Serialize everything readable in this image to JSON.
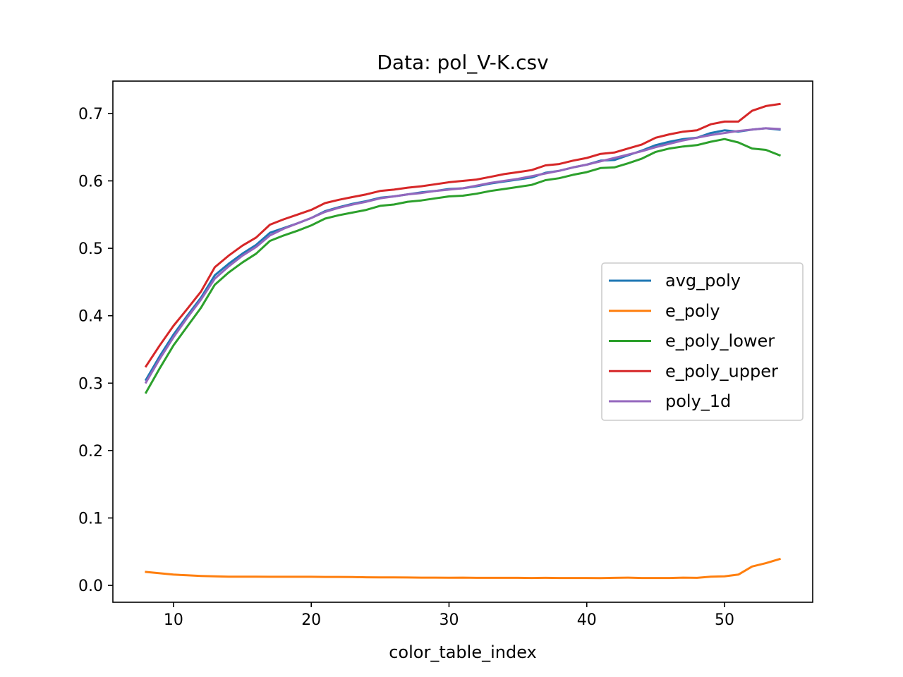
{
  "chart_data": {
    "type": "line",
    "title": "Data: pol_V-K.csv",
    "xlabel": "color_table_index",
    "ylabel": "",
    "xlim": [
      5.6,
      56.4
    ],
    "ylim": [
      -0.025,
      0.748
    ],
    "xticks": [
      10,
      20,
      30,
      40,
      50
    ],
    "xtick_labels": [
      "10",
      "20",
      "30",
      "40",
      "50"
    ],
    "yticks": [
      0.0,
      0.1,
      0.2,
      0.3,
      0.4,
      0.5,
      0.6,
      0.7
    ],
    "ytick_labels": [
      "0.0",
      "0.1",
      "0.2",
      "0.3",
      "0.4",
      "0.5",
      "0.6",
      "0.7"
    ],
    "grid": false,
    "legend_position": "center-right",
    "x": [
      8,
      9,
      10,
      11,
      12,
      13,
      14,
      15,
      16,
      17,
      18,
      19,
      20,
      21,
      22,
      23,
      24,
      25,
      26,
      27,
      28,
      29,
      30,
      31,
      32,
      33,
      34,
      35,
      36,
      37,
      38,
      39,
      40,
      41,
      42,
      43,
      44,
      45,
      46,
      47,
      48,
      49,
      50,
      51,
      52,
      53,
      54
    ],
    "series": [
      {
        "name": "avg_poly",
        "color": "#1f77b4",
        "values": [
          0.305,
          0.34,
          0.372,
          0.4,
          0.427,
          0.46,
          0.477,
          0.492,
          0.505,
          0.523,
          0.53,
          0.537,
          0.545,
          0.555,
          0.561,
          0.566,
          0.57,
          0.575,
          0.577,
          0.58,
          0.583,
          0.585,
          0.588,
          0.589,
          0.592,
          0.596,
          0.599,
          0.602,
          0.605,
          0.612,
          0.615,
          0.62,
          0.624,
          0.63,
          0.631,
          0.638,
          0.645,
          0.653,
          0.658,
          0.662,
          0.664,
          0.671,
          0.675,
          0.673,
          0.676,
          0.678,
          0.676
        ]
      },
      {
        "name": "e_poly",
        "color": "#ff7f0e",
        "values": [
          0.02,
          0.018,
          0.016,
          0.015,
          0.014,
          0.0135,
          0.013,
          0.013,
          0.013,
          0.0128,
          0.0128,
          0.0128,
          0.0128,
          0.0125,
          0.0125,
          0.0123,
          0.012,
          0.0118,
          0.0118,
          0.0117,
          0.0115,
          0.0115,
          0.0113,
          0.0115,
          0.0112,
          0.0112,
          0.0112,
          0.0112,
          0.011,
          0.0112,
          0.011,
          0.011,
          0.011,
          0.0108,
          0.0112,
          0.0115,
          0.011,
          0.011,
          0.011,
          0.0115,
          0.0112,
          0.013,
          0.0135,
          0.016,
          0.028,
          0.033,
          0.039
        ]
      },
      {
        "name": "e_poly_lower",
        "color": "#2ca02c",
        "values": [
          0.286,
          0.322,
          0.356,
          0.384,
          0.412,
          0.446,
          0.464,
          0.479,
          0.492,
          0.511,
          0.519,
          0.526,
          0.534,
          0.544,
          0.549,
          0.553,
          0.557,
          0.563,
          0.565,
          0.569,
          0.571,
          0.574,
          0.577,
          0.578,
          0.581,
          0.585,
          0.588,
          0.591,
          0.594,
          0.601,
          0.604,
          0.609,
          0.613,
          0.619,
          0.62,
          0.626,
          0.633,
          0.643,
          0.648,
          0.651,
          0.653,
          0.658,
          0.662,
          0.657,
          0.648,
          0.646,
          0.638
        ]
      },
      {
        "name": "e_poly_upper",
        "color": "#d62728",
        "values": [
          0.325,
          0.356,
          0.385,
          0.41,
          0.436,
          0.472,
          0.489,
          0.504,
          0.516,
          0.535,
          0.543,
          0.55,
          0.557,
          0.567,
          0.572,
          0.576,
          0.58,
          0.585,
          0.587,
          0.59,
          0.592,
          0.595,
          0.598,
          0.6,
          0.602,
          0.606,
          0.61,
          0.613,
          0.616,
          0.623,
          0.625,
          0.63,
          0.634,
          0.64,
          0.642,
          0.648,
          0.654,
          0.664,
          0.669,
          0.673,
          0.675,
          0.684,
          0.688,
          0.688,
          0.704,
          0.711,
          0.714
        ]
      },
      {
        "name": "poly_1d",
        "color": "#9467bd",
        "values": [
          0.301,
          0.336,
          0.368,
          0.397,
          0.424,
          0.455,
          0.473,
          0.489,
          0.502,
          0.519,
          0.529,
          0.537,
          0.545,
          0.554,
          0.56,
          0.565,
          0.569,
          0.574,
          0.577,
          0.58,
          0.582,
          0.585,
          0.587,
          0.589,
          0.593,
          0.597,
          0.6,
          0.603,
          0.607,
          0.611,
          0.615,
          0.62,
          0.624,
          0.629,
          0.634,
          0.639,
          0.644,
          0.65,
          0.655,
          0.66,
          0.664,
          0.668,
          0.671,
          0.674,
          0.676,
          0.678,
          0.677
        ]
      }
    ]
  }
}
